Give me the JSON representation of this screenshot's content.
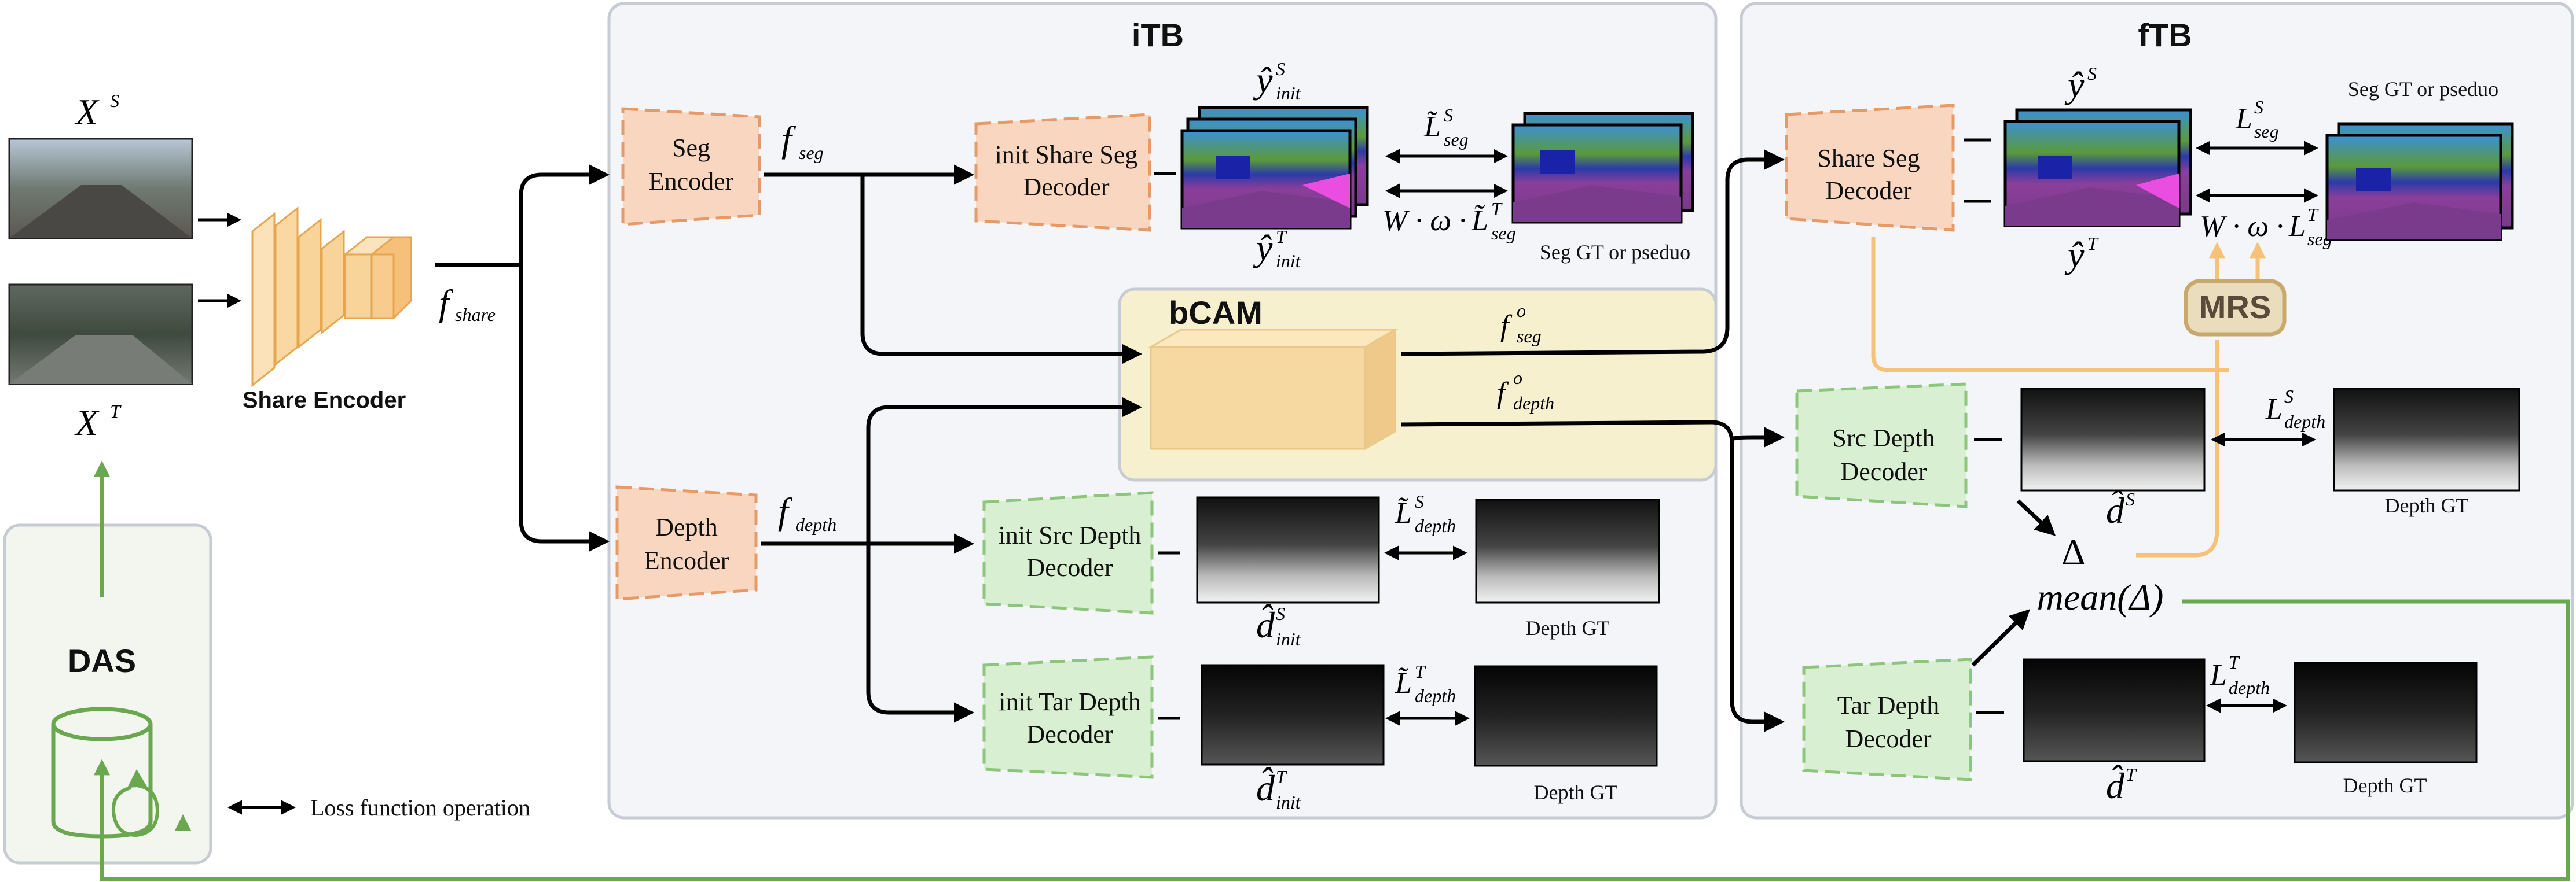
{
  "modules": {
    "itb": "iTB",
    "ftb": "fTB",
    "bcam": "bCAM",
    "das": "DAS",
    "mrs": "MRS"
  },
  "inputs": {
    "source": {
      "base": "X",
      "sup": "S"
    },
    "target": {
      "base": "X",
      "sup": "T"
    }
  },
  "encoders": {
    "share": "Share Encoder",
    "seg": [
      "Seg",
      "Encoder"
    ],
    "depth": [
      "Depth",
      "Encoder"
    ]
  },
  "decoders": {
    "init_share_seg": [
      "init Share Seg",
      "Decoder"
    ],
    "init_src_depth": [
      "init Src Depth",
      "Decoder"
    ],
    "init_tar_depth": [
      "init Tar Depth",
      "Decoder"
    ],
    "share_seg": [
      "Share Seg",
      "Decoder"
    ],
    "src_depth": [
      "Src Depth",
      "Decoder"
    ],
    "tar_depth": [
      "Tar Depth",
      "Decoder"
    ]
  },
  "features": {
    "f_share": {
      "base": "f",
      "sub": "share"
    },
    "f_seg": {
      "base": "f",
      "sub": "seg"
    },
    "f_depth": {
      "base": "f",
      "sub": "depth"
    },
    "f_seg_o": {
      "base": "f",
      "sub": "seg",
      "sup": "o"
    },
    "f_depth_o": {
      "base": "f",
      "sub": "depth",
      "sup": "o"
    }
  },
  "predictions": {
    "y_init_s": {
      "base": "ŷ",
      "sub": "init",
      "sup": "S"
    },
    "y_init_t": {
      "base": "ŷ",
      "sub": "init",
      "sup": "T"
    },
    "d_init_s": {
      "base": "d̂",
      "sub": "init",
      "sup": "S"
    },
    "d_init_t": {
      "base": "d̂",
      "sub": "init",
      "sup": "T"
    },
    "y_s": {
      "base": "ŷ",
      "sup": "S"
    },
    "y_t": {
      "base": "ŷ",
      "sup": "T"
    },
    "d_s": {
      "base": "d̂",
      "sup": "S"
    },
    "d_t": {
      "base": "d̂",
      "sup": "T"
    }
  },
  "losses": {
    "itb_seg_s": {
      "base": "L̃",
      "sub": "seg",
      "sup": "S"
    },
    "itb_seg_t": {
      "prefix": "W · ω ·",
      "base": "L̃",
      "sub": "seg",
      "sup": "T"
    },
    "itb_depth_s": {
      "base": "L̃",
      "sub": "depth",
      "sup": "S"
    },
    "itb_depth_t": {
      "base": "L̃",
      "sub": "depth",
      "sup": "T"
    },
    "ftb_seg_s": {
      "base": "L",
      "sub": "seg",
      "sup": "S"
    },
    "ftb_seg_t": {
      "prefix": "W · ω ·",
      "base": "L",
      "sub": "seg",
      "sup": "T"
    },
    "ftb_depth_s": {
      "base": "L",
      "sub": "depth",
      "sup": "S"
    },
    "ftb_depth_t": {
      "base": "L",
      "sub": "depth",
      "sup": "T"
    }
  },
  "gt_labels": {
    "seg_gt_itb": "Seg GT or pseduo",
    "seg_gt_ftb": "Seg GT or pseduo",
    "depth_gt_1": "Depth GT",
    "depth_gt_2": "Depth GT",
    "depth_gt_3": "Depth GT",
    "depth_gt_4": "Depth GT"
  },
  "delta": "Δ",
  "mean_delta": "mean(Δ)",
  "legend": {
    "loss_op": "Loss function operation"
  },
  "colors": {
    "encoder_fill": "#f8d6bf",
    "encoder_stroke": "#e69a67",
    "decoder_fill": "#d9efd2",
    "decoder_stroke": "#8cc67a",
    "bcam_bg": "#f6f0cf",
    "cube_front": "#f6d9a0",
    "mrs_fill": "#e9ddbd",
    "mrs_stroke": "#c9a86b",
    "mrs_arrow": "#f6c27a",
    "das_green": "#6aa84f",
    "panel_bg": "#f4f5f8",
    "panel_stroke": "#c7cbd3",
    "share_encoder_face": "#f9d49a"
  }
}
